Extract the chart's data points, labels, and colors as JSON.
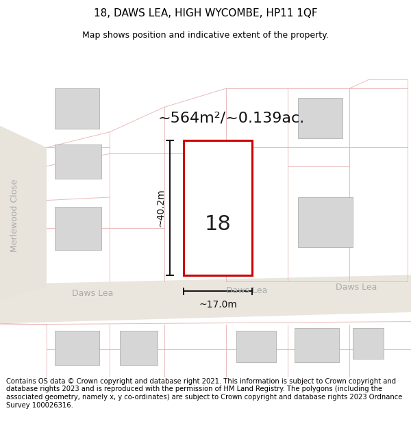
{
  "title": "18, DAWS LEA, HIGH WYCOMBE, HP11 1QF",
  "subtitle": "Map shows position and indicative extent of the property.",
  "area_text": "~564m²/~0.139ac.",
  "dim_height": "~40.2m",
  "dim_width": "~17.0m",
  "property_number": "18",
  "street_left": "Daws Lea",
  "street_center": "Daws Lea",
  "street_right": "Daws Lea",
  "street_vertical": "Merlewood Close",
  "footer_text": "Contains OS data © Crown copyright and database right 2021. This information is subject to Crown copyright and database rights 2023 and is reproduced with the permission of HM Land Registry. The polygons (including the associated geometry, namely x, y co-ordinates) are subject to Crown copyright and database rights 2023 Ordnance Survey 100026316.",
  "map_bg": "#f7f5f0",
  "road_fill": "#ede9e2",
  "building_fill": "#d6d6d6",
  "building_edge": "#b0b0b0",
  "plot_line_color": "#e8b4b4",
  "prop_color": "#cc0000",
  "prop_fill": "#ffffff",
  "dim_color": "#111111",
  "street_text_color": "#aaaaaa",
  "title_fontsize": 11,
  "subtitle_fontsize": 9,
  "footer_fontsize": 7.2,
  "area_fontsize": 16,
  "number_fontsize": 22,
  "dim_label_fontsize": 10,
  "street_fontsize": 9
}
